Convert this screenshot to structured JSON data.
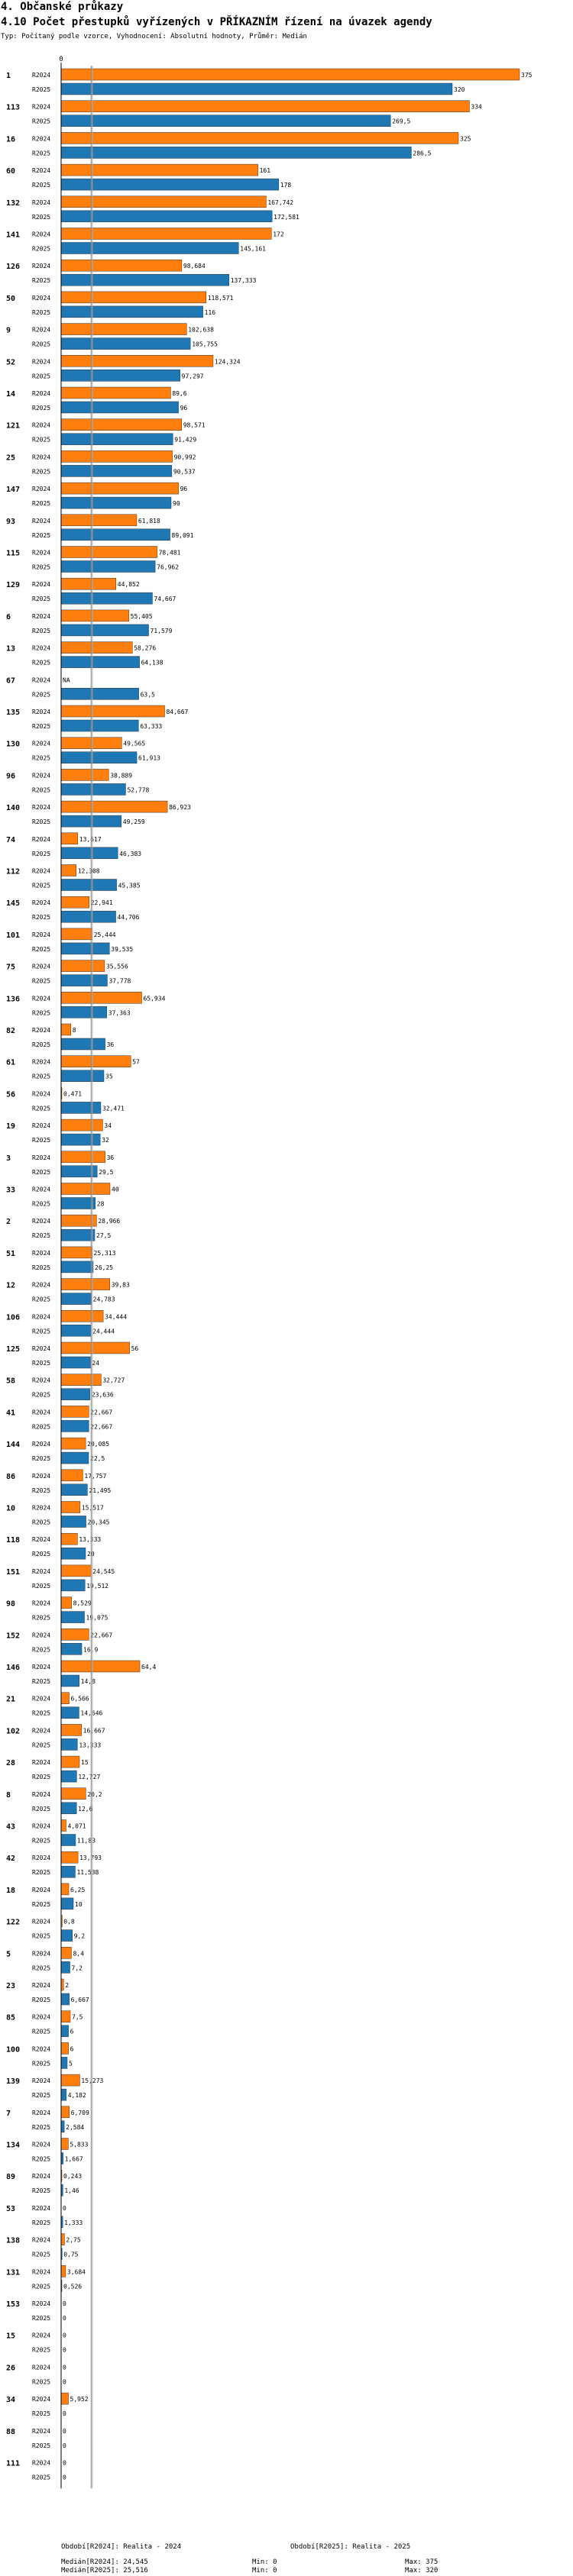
{
  "header": {
    "section": "4. Občanské průkazy",
    "title": "4.10 Počet přestupků vyřízených v PŘÍKAZNÍM řízení na úvazek agendy",
    "subtitle": "Typ: Počítaný podle vzorce, Vyhodnocení: Absolutní hodnoty, Průměr: Medián"
  },
  "chart_data": {
    "type": "bar",
    "orientation": "horizontal",
    "title": "4.10 Počet přestupků vyřízených v PŘÍKAZNÍM řízení na úvazek agendy",
    "xlim": [
      0,
      375
    ],
    "x_ticks": [
      "0"
    ],
    "median_lines": [
      24.545,
      25.516
    ],
    "series": [
      {
        "name": "R2024",
        "color": "#ff7f0e"
      },
      {
        "name": "R2025",
        "color": "#1f77b4"
      }
    ],
    "groups": [
      {
        "id": "1",
        "r2024": 375,
        "r2024_label": "375",
        "r2025": 320,
        "r2025_label": "320"
      },
      {
        "id": "113",
        "r2024": 334,
        "r2024_label": "334",
        "r2025": 269.5,
        "r2025_label": "269,5"
      },
      {
        "id": "16",
        "r2024": 325,
        "r2024_label": "325",
        "r2025": 286.5,
        "r2025_label": "286,5"
      },
      {
        "id": "60",
        "r2024": 161,
        "r2024_label": "161",
        "r2025": 178,
        "r2025_label": "178"
      },
      {
        "id": "132",
        "r2024": 167.742,
        "r2024_label": "167,742",
        "r2025": 172.581,
        "r2025_label": "172,581"
      },
      {
        "id": "141",
        "r2024": 172,
        "r2024_label": "172",
        "r2025": 145.161,
        "r2025_label": "145,161"
      },
      {
        "id": "126",
        "r2024": 98.684,
        "r2024_label": "98,684",
        "r2025": 137.333,
        "r2025_label": "137,333"
      },
      {
        "id": "50",
        "r2024": 118.571,
        "r2024_label": "118,571",
        "r2025": 116,
        "r2025_label": "116"
      },
      {
        "id": "9",
        "r2024": 102.638,
        "r2024_label": "102,638",
        "r2025": 105.755,
        "r2025_label": "105,755"
      },
      {
        "id": "52",
        "r2024": 124.324,
        "r2024_label": "124,324",
        "r2025": 97.297,
        "r2025_label": "97,297"
      },
      {
        "id": "14",
        "r2024": 89.6,
        "r2024_label": "89,6",
        "r2025": 96,
        "r2025_label": "96"
      },
      {
        "id": "121",
        "r2024": 98.571,
        "r2024_label": "98,571",
        "r2025": 91.429,
        "r2025_label": "91,429"
      },
      {
        "id": "25",
        "r2024": 90.992,
        "r2024_label": "90,992",
        "r2025": 90.537,
        "r2025_label": "90,537"
      },
      {
        "id": "147",
        "r2024": 96,
        "r2024_label": "96",
        "r2025": 90,
        "r2025_label": "90"
      },
      {
        "id": "93",
        "r2024": 61.818,
        "r2024_label": "61,818",
        "r2025": 89.091,
        "r2025_label": "89,091"
      },
      {
        "id": "115",
        "r2024": 78.481,
        "r2024_label": "78,481",
        "r2025": 76.962,
        "r2025_label": "76,962"
      },
      {
        "id": "129",
        "r2024": 44.852,
        "r2024_label": "44,852",
        "r2025": 74.667,
        "r2025_label": "74,667"
      },
      {
        "id": "6",
        "r2024": 55.405,
        "r2024_label": "55,405",
        "r2025": 71.579,
        "r2025_label": "71,579"
      },
      {
        "id": "13",
        "r2024": 58.276,
        "r2024_label": "58,276",
        "r2025": 64.138,
        "r2025_label": "64,138"
      },
      {
        "id": "67",
        "r2024": null,
        "r2024_label": "NA",
        "r2025": 63.5,
        "r2025_label": "63,5"
      },
      {
        "id": "135",
        "r2024": 84.667,
        "r2024_label": "84,667",
        "r2025": 63.333,
        "r2025_label": "63,333"
      },
      {
        "id": "130",
        "r2024": 49.565,
        "r2024_label": "49,565",
        "r2025": 61.913,
        "r2025_label": "61,913"
      },
      {
        "id": "96",
        "r2024": 38.889,
        "r2024_label": "38,889",
        "r2025": 52.778,
        "r2025_label": "52,778"
      },
      {
        "id": "140",
        "r2024": 86.923,
        "r2024_label": "86,923",
        "r2025": 49.259,
        "r2025_label": "49,259"
      },
      {
        "id": "74",
        "r2024": 13.617,
        "r2024_label": "13,617",
        "r2025": 46.383,
        "r2025_label": "46,383"
      },
      {
        "id": "112",
        "r2024": 12.308,
        "r2024_label": "12,308",
        "r2025": 45.385,
        "r2025_label": "45,385"
      },
      {
        "id": "145",
        "r2024": 22.941,
        "r2024_label": "22,941",
        "r2025": 44.706,
        "r2025_label": "44,706"
      },
      {
        "id": "101",
        "r2024": 25.444,
        "r2024_label": "25,444",
        "r2025": 39.535,
        "r2025_label": "39,535"
      },
      {
        "id": "75",
        "r2024": 35.556,
        "r2024_label": "35,556",
        "r2025": 37.778,
        "r2025_label": "37,778"
      },
      {
        "id": "136",
        "r2024": 65.934,
        "r2024_label": "65,934",
        "r2025": 37.363,
        "r2025_label": "37,363"
      },
      {
        "id": "82",
        "r2024": 8,
        "r2024_label": "8",
        "r2025": 36,
        "r2025_label": "36"
      },
      {
        "id": "61",
        "r2024": 57,
        "r2024_label": "57",
        "r2025": 35,
        "r2025_label": "35"
      },
      {
        "id": "56",
        "r2024": 0.471,
        "r2024_label": "0,471",
        "r2025": 32.471,
        "r2025_label": "32,471"
      },
      {
        "id": "19",
        "r2024": 34,
        "r2024_label": "34",
        "r2025": 32,
        "r2025_label": "32"
      },
      {
        "id": "3",
        "r2024": 36,
        "r2024_label": "36",
        "r2025": 29.5,
        "r2025_label": "29,5"
      },
      {
        "id": "33",
        "r2024": 40,
        "r2024_label": "40",
        "r2025": 28,
        "r2025_label": "28"
      },
      {
        "id": "2",
        "r2024": 28.966,
        "r2024_label": "28,966",
        "r2025": 27.5,
        "r2025_label": "27,5"
      },
      {
        "id": "51",
        "r2024": 25.313,
        "r2024_label": "25,313",
        "r2025": 26.25,
        "r2025_label": "26,25"
      },
      {
        "id": "12",
        "r2024": 39.83,
        "r2024_label": "39,83",
        "r2025": 24.783,
        "r2025_label": "24,783"
      },
      {
        "id": "106",
        "r2024": 34.444,
        "r2024_label": "34,444",
        "r2025": 24.444,
        "r2025_label": "24,444"
      },
      {
        "id": "125",
        "r2024": 56,
        "r2024_label": "56",
        "r2025": 24,
        "r2025_label": "24"
      },
      {
        "id": "58",
        "r2024": 32.727,
        "r2024_label": "32,727",
        "r2025": 23.636,
        "r2025_label": "23,636"
      },
      {
        "id": "41",
        "r2024": 22.667,
        "r2024_label": "22,667",
        "r2025": 22.667,
        "r2025_label": "22,667"
      },
      {
        "id": "144",
        "r2024": 20.085,
        "r2024_label": "20,085",
        "r2025": 22.5,
        "r2025_label": "22,5"
      },
      {
        "id": "86",
        "r2024": 17.757,
        "r2024_label": "17,757",
        "r2025": 21.495,
        "r2025_label": "21,495"
      },
      {
        "id": "10",
        "r2024": 15.517,
        "r2024_label": "15,517",
        "r2025": 20.345,
        "r2025_label": "20,345"
      },
      {
        "id": "118",
        "r2024": 13.333,
        "r2024_label": "13,333",
        "r2025": 20,
        "r2025_label": "20"
      },
      {
        "id": "151",
        "r2024": 24.545,
        "r2024_label": "24,545",
        "r2025": 19.512,
        "r2025_label": "19,512"
      },
      {
        "id": "98",
        "r2024": 8.529,
        "r2024_label": "8,529",
        "r2025": 19.075,
        "r2025_label": "19,075"
      },
      {
        "id": "152",
        "r2024": 22.667,
        "r2024_label": "22,667",
        "r2025": 16.9,
        "r2025_label": "16,9"
      },
      {
        "id": "146",
        "r2024": 64.4,
        "r2024_label": "64,4",
        "r2025": 14.8,
        "r2025_label": "14,8"
      },
      {
        "id": "21",
        "r2024": 6.566,
        "r2024_label": "6,566",
        "r2025": 14.646,
        "r2025_label": "14,646"
      },
      {
        "id": "102",
        "r2024": 16.667,
        "r2024_label": "16,667",
        "r2025": 13.333,
        "r2025_label": "13,333"
      },
      {
        "id": "28",
        "r2024": 15,
        "r2024_label": "15",
        "r2025": 12.727,
        "r2025_label": "12,727"
      },
      {
        "id": "8",
        "r2024": 20.2,
        "r2024_label": "20,2",
        "r2025": 12.6,
        "r2025_label": "12,6"
      },
      {
        "id": "43",
        "r2024": 4.071,
        "r2024_label": "4,071",
        "r2025": 11.83,
        "r2025_label": "11,83"
      },
      {
        "id": "42",
        "r2024": 13.793,
        "r2024_label": "13,793",
        "r2025": 11.538,
        "r2025_label": "11,538"
      },
      {
        "id": "18",
        "r2024": 6.25,
        "r2024_label": "6,25",
        "r2025": 10,
        "r2025_label": "10"
      },
      {
        "id": "122",
        "r2024": 0.8,
        "r2024_label": "0,8",
        "r2025": 9.2,
        "r2025_label": "9,2"
      },
      {
        "id": "5",
        "r2024": 8.4,
        "r2024_label": "8,4",
        "r2025": 7.2,
        "r2025_label": "7,2"
      },
      {
        "id": "23",
        "r2024": 2,
        "r2024_label": "2",
        "r2025": 6.667,
        "r2025_label": "6,667"
      },
      {
        "id": "85",
        "r2024": 7.5,
        "r2024_label": "7,5",
        "r2025": 6,
        "r2025_label": "6"
      },
      {
        "id": "100",
        "r2024": 6,
        "r2024_label": "6",
        "r2025": 5,
        "r2025_label": "5"
      },
      {
        "id": "139",
        "r2024": 15.273,
        "r2024_label": "15,273",
        "r2025": 4.182,
        "r2025_label": "4,182"
      },
      {
        "id": "7",
        "r2024": 6.709,
        "r2024_label": "6,709",
        "r2025": 2.584,
        "r2025_label": "2,584"
      },
      {
        "id": "134",
        "r2024": 5.833,
        "r2024_label": "5,833",
        "r2025": 1.667,
        "r2025_label": "1,667"
      },
      {
        "id": "89",
        "r2024": 0.243,
        "r2024_label": "0,243",
        "r2025": 1.46,
        "r2025_label": "1,46"
      },
      {
        "id": "53",
        "r2024": 0,
        "r2024_label": "0",
        "r2025": 1.333,
        "r2025_label": "1,333"
      },
      {
        "id": "138",
        "r2024": 2.75,
        "r2024_label": "2,75",
        "r2025": 0.75,
        "r2025_label": "0,75"
      },
      {
        "id": "131",
        "r2024": 3.684,
        "r2024_label": "3,684",
        "r2025": 0.526,
        "r2025_label": "0,526"
      },
      {
        "id": "153",
        "r2024": 0,
        "r2024_label": "0",
        "r2025": 0,
        "r2025_label": "0"
      },
      {
        "id": "15",
        "r2024": 0,
        "r2024_label": "0",
        "r2025": 0,
        "r2025_label": "0"
      },
      {
        "id": "26",
        "r2024": 0,
        "r2024_label": "0",
        "r2025": 0,
        "r2025_label": "0"
      },
      {
        "id": "34",
        "r2024": 5.952,
        "r2024_label": "5,952",
        "r2025": 0,
        "r2025_label": "0"
      },
      {
        "id": "88",
        "r2024": 0,
        "r2024_label": "0",
        "r2025": 0,
        "r2025_label": "0"
      },
      {
        "id": "111",
        "r2024": 0,
        "r2024_label": "0",
        "r2025": 0,
        "r2025_label": "0"
      }
    ]
  },
  "footer": {
    "period_2024": "Období[R2024]: Realita - 2024",
    "period_2025": "Období[R2025]: Realita - 2025",
    "median_2024": "Medián[R2024]: 24,545",
    "median_2025": "Medián[R2025]: 25,516",
    "min_2024": "Min: 0",
    "min_2025": "Min: 0",
    "max_2024": "Max: 375",
    "max_2025": "Max: 320"
  }
}
